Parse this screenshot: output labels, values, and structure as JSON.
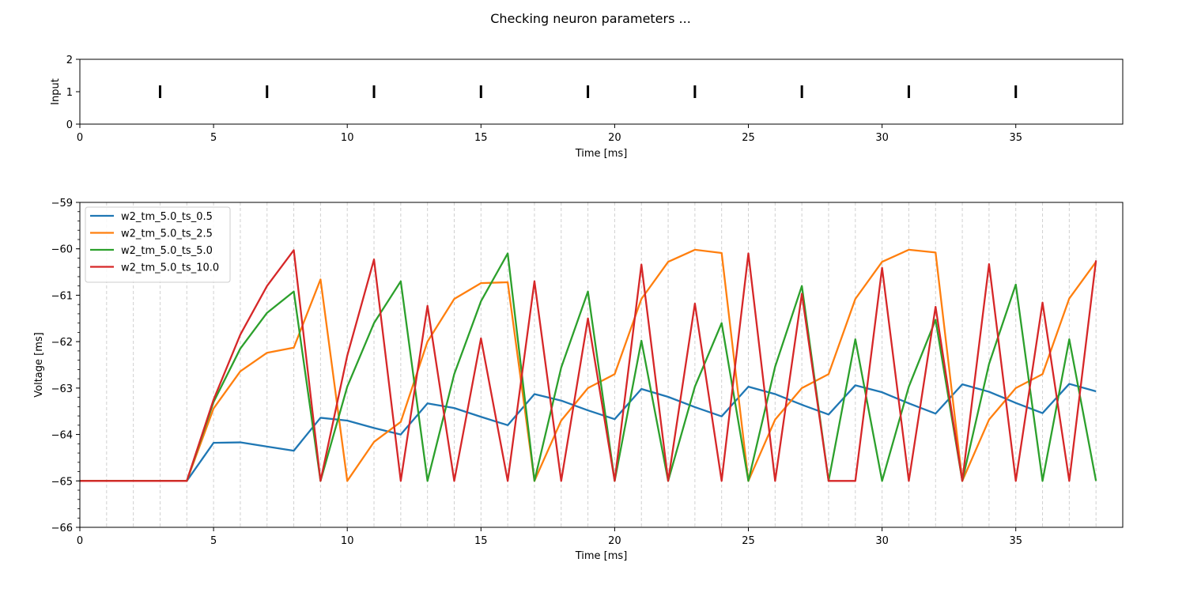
{
  "figure": {
    "title": "Checking neuron parameters ..."
  },
  "chart_data": [
    {
      "type": "scatter",
      "title": "",
      "xlabel": "Time [ms]",
      "ylabel": "Input",
      "xlim": [
        0,
        39
      ],
      "ylim": [
        0,
        2
      ],
      "xticks": [
        0,
        5,
        10,
        15,
        20,
        25,
        30,
        35
      ],
      "yticks": [
        0,
        1,
        2
      ],
      "marker": "vertical-line",
      "marker_color": "#000000",
      "grid": false,
      "series": [
        {
          "x": [
            3,
            7,
            11,
            15,
            19,
            23,
            27,
            31,
            35
          ],
          "y": [
            1,
            1,
            1,
            1,
            1,
            1,
            1,
            1,
            1
          ]
        }
      ]
    },
    {
      "type": "line",
      "title": "",
      "xlabel": "Time [ms]",
      "ylabel": "Voltage [ms]",
      "xlim": [
        0,
        39
      ],
      "ylim": [
        -66,
        -59
      ],
      "xticks": [
        0,
        5,
        10,
        15,
        20,
        25,
        30,
        35
      ],
      "yticks": [
        -66,
        -65,
        -64,
        -63,
        -62,
        -61,
        -60,
        -59
      ],
      "grid": "vertical dashed lines every 1 ms",
      "legend_position": "top-left",
      "x": [
        0,
        1,
        2,
        3,
        4,
        5,
        6,
        7,
        8,
        9,
        10,
        11,
        12,
        13,
        14,
        15,
        16,
        17,
        18,
        19,
        20,
        21,
        22,
        23,
        24,
        25,
        26,
        27,
        28,
        29,
        30,
        31,
        32,
        33,
        34,
        35,
        36,
        37,
        38
      ],
      "series": [
        {
          "name": "w2_tm_5.0_ts_0.5",
          "color": "#1f77b4",
          "values": [
            -65,
            -65,
            -65,
            -65,
            -65,
            -64.18,
            -64.17,
            -64.26,
            -64.35,
            -63.64,
            -63.7,
            -63.86,
            -64.0,
            -63.33,
            -63.43,
            -63.62,
            -63.8,
            -63.13,
            -63.27,
            -63.48,
            -63.67,
            -63.02,
            -63.19,
            -63.41,
            -63.61,
            -62.97,
            -63.13,
            -63.36,
            -63.57,
            -62.94,
            -63.09,
            -63.33,
            -63.55,
            -62.92,
            -63.08,
            -63.32,
            -63.54,
            -62.91,
            -63.07
          ]
        },
        {
          "name": "w2_tm_5.0_ts_2.5",
          "color": "#ff7f0e",
          "values": [
            -65,
            -65,
            -65,
            -65,
            -65,
            -63.44,
            -62.64,
            -62.24,
            -62.13,
            -60.66,
            -65,
            -64.16,
            -63.73,
            -62.0,
            -61.08,
            -60.74,
            -60.72,
            -65,
            -63.7,
            -63.0,
            -62.7,
            -61.08,
            -60.28,
            -60.02,
            -60.09,
            -65,
            -63.68,
            -63.0,
            -62.7,
            -61.08,
            -60.28,
            -60.02,
            -60.08,
            -65,
            -63.68,
            -63.0,
            -62.7,
            -61.07,
            -60.28
          ]
        },
        {
          "name": "w2_tm_5.0_ts_5.0",
          "color": "#2ca02c",
          "values": [
            -65,
            -65,
            -65,
            -65,
            -65,
            -63.3,
            -62.15,
            -61.38,
            -60.92,
            -65,
            -62.97,
            -61.6,
            -60.7,
            -65,
            -62.7,
            -61.13,
            -60.1,
            -65,
            -62.56,
            -60.92,
            -65,
            -61.98,
            -65,
            -62.97,
            -61.6,
            -65,
            -62.54,
            -60.8,
            -65,
            -61.95,
            -65,
            -62.97,
            -61.53,
            -65,
            -62.48,
            -60.77,
            -65,
            -61.95,
            -65
          ]
        },
        {
          "name": "w2_tm_5.0_ts_10.0",
          "color": "#d62728",
          "values": [
            -65,
            -65,
            -65,
            -65,
            -65,
            -63.25,
            -61.85,
            -60.8,
            -60.03,
            -65,
            -62.3,
            -60.23,
            -65,
            -61.23,
            -65,
            -61.93,
            -65,
            -60.7,
            -65,
            -61.5,
            -65,
            -60.34,
            -65,
            -61.18,
            -65,
            -60.1,
            -65,
            -60.97,
            -65,
            -65,
            -60.41,
            -65,
            -61.25,
            -65,
            -60.33,
            -65,
            -61.16,
            -65,
            -60.25
          ]
        }
      ]
    }
  ]
}
